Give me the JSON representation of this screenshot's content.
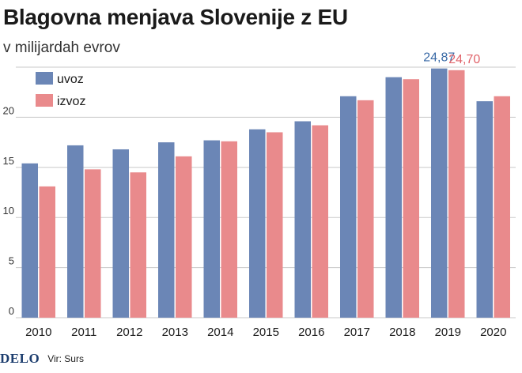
{
  "header": {
    "title": "Blagovna menjava Slovenije z EU",
    "subtitle": "v milijardah evrov"
  },
  "footer": {
    "logo": "DELO",
    "source": "Vir: Surs"
  },
  "colors": {
    "uvoz": "#6b86b6",
    "izvoz": "#e98a8c",
    "uvoz_label": "#3a6aa6",
    "izvoz_label": "#e0636a",
    "grid": "#c9c9c9"
  },
  "chart_data": {
    "type": "bar",
    "title": "Blagovna menjava Slovenije z EU",
    "subtitle": "v milijardah evrov",
    "xlabel": "",
    "ylabel": "",
    "categories": [
      "2010",
      "2011",
      "2012",
      "2013",
      "2014",
      "2015",
      "2016",
      "2017",
      "2018",
      "2019",
      "2020"
    ],
    "series": [
      {
        "name": "uvoz",
        "values": [
          15.4,
          17.2,
          16.8,
          17.5,
          17.7,
          18.8,
          19.6,
          22.1,
          24.0,
          24.87,
          21.6
        ]
      },
      {
        "name": "izvoz",
        "values": [
          13.1,
          14.8,
          14.5,
          16.1,
          17.6,
          18.5,
          19.2,
          21.7,
          23.8,
          24.7,
          22.1
        ]
      }
    ],
    "ylim": [
      0,
      25
    ],
    "yticks": [
      "0",
      "5",
      "10",
      "15",
      "20"
    ],
    "data_labels": [
      {
        "category": "2019",
        "series": "uvoz",
        "text": "24,87"
      },
      {
        "category": "2019",
        "series": "izvoz",
        "text": "24,70"
      }
    ],
    "grid": true,
    "legend_position": "top-left"
  }
}
